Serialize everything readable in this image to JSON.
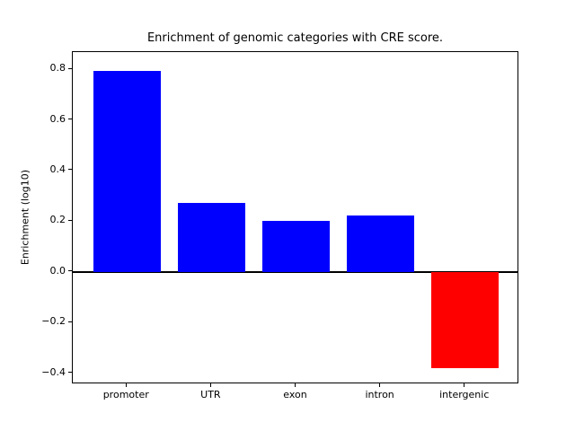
{
  "figure": {
    "background_color": "#ffffff",
    "text_color": "#000000"
  },
  "chart_data": {
    "type": "bar",
    "title": "Enrichment of genomic categories with CRE score.",
    "xlabel": "",
    "ylabel": "Enrichment (log10)",
    "categories": [
      "promoter",
      "UTR",
      "exon",
      "intron",
      "intergenic"
    ],
    "values": [
      0.795,
      0.273,
      0.2,
      0.222,
      -0.38
    ],
    "bar_colors": [
      "#0000ff",
      "#0000ff",
      "#0000ff",
      "#0000ff",
      "#ff0000"
    ],
    "positive_color": "#0000ff",
    "negative_color": "#ff0000",
    "yticks": [
      {
        "value": -0.4,
        "label": "−0.4"
      },
      {
        "value": -0.2,
        "label": "−0.2"
      },
      {
        "value": 0.0,
        "label": "0.0"
      },
      {
        "value": 0.2,
        "label": "0.2"
      },
      {
        "value": 0.4,
        "label": "0.4"
      },
      {
        "value": 0.6,
        "label": "0.6"
      },
      {
        "value": 0.8,
        "label": "0.8"
      }
    ],
    "ylim": [
      -0.444,
      0.868
    ],
    "xlim": [
      -0.64,
      4.64
    ],
    "bar_width": 0.8,
    "zero_line": {
      "color": "#000000",
      "thickness_px": 2
    },
    "grid": false,
    "legend": "none",
    "spine_color": "#000000"
  }
}
